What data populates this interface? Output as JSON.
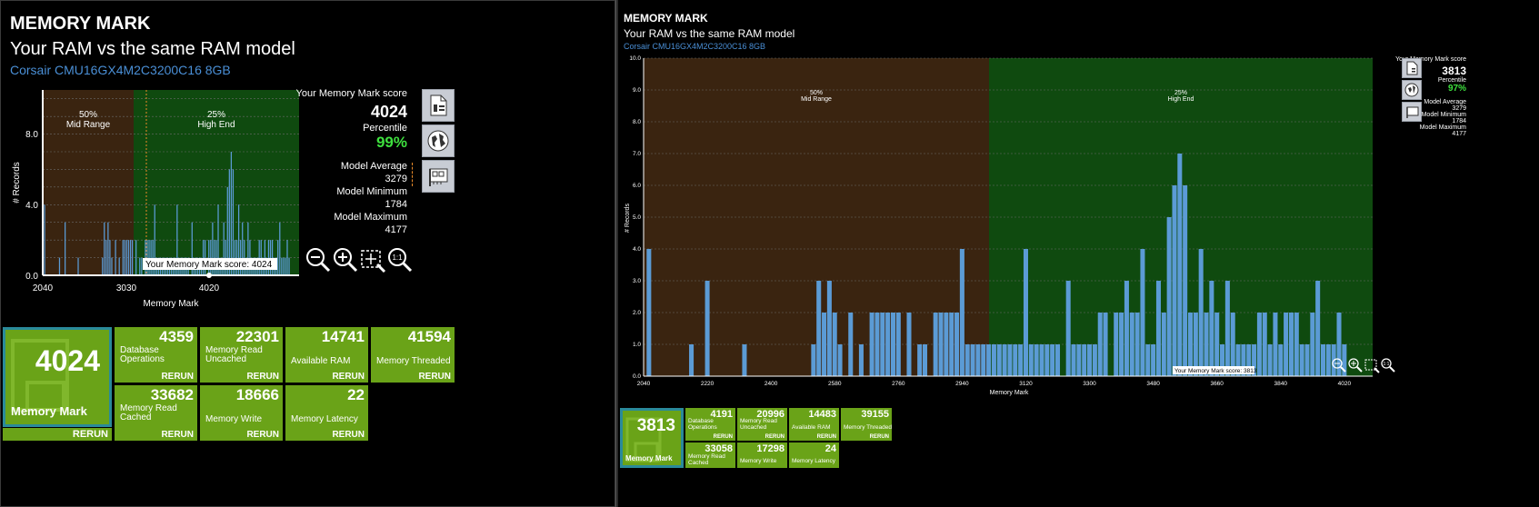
{
  "left": {
    "title": "MEMORY MARK",
    "subtitle": "Your RAM vs the same RAM model",
    "model": "Corsair CMU16GX4M2C3200C16 8GB",
    "chart": {
      "ylabel": "# Records",
      "xlabel": "Memory Mark",
      "yticks": [
        "0.0",
        "4.0",
        "8.0"
      ],
      "xticks": [
        "2040",
        "3030",
        "4020"
      ],
      "band1_pct": "50%",
      "band1_name": "Mid Range",
      "band2_pct": "25%",
      "band2_name": "High End",
      "marker": "Your Memory Mark score: 4024"
    },
    "score": {
      "label": "Your Memory Mark score",
      "value": "4024",
      "percentile_label": "Percentile",
      "percentile": "99%",
      "avg_label": "Model Average",
      "avg": "3279",
      "min_label": "Model Minimum",
      "min": "1784",
      "max_label": "Model Maximum",
      "max": "4177"
    },
    "tiles": {
      "main": {
        "value": "4024",
        "label": "Memory Mark",
        "rerun": "RERUN"
      },
      "db": {
        "value": "4359",
        "label1": "Database",
        "label2": "Operations",
        "rerun": "RERUN"
      },
      "readun": {
        "value": "22301",
        "label1": "Memory Read",
        "label2": "Uncached",
        "rerun": "RERUN"
      },
      "avail": {
        "value": "14741",
        "label1": "Available RAM",
        "rerun": "RERUN"
      },
      "thread": {
        "value": "41594",
        "label1": "Memory Threaded",
        "rerun": "RERUN"
      },
      "readc": {
        "value": "33682",
        "label1": "Memory Read",
        "label2": "Cached",
        "rerun": "RERUN"
      },
      "write": {
        "value": "18666",
        "label1": "Memory Write",
        "rerun": "RERUN"
      },
      "lat": {
        "value": "22",
        "label1": "Memory Latency",
        "rerun": "RERUN"
      }
    }
  },
  "right": {
    "title": "MEMORY MARK",
    "subtitle": "Your RAM vs the same RAM model",
    "model": "Corsair CMU16GX4M2C3200C16 8GB",
    "chart": {
      "ylabel": "# Records",
      "xlabel": "Memory Mark",
      "yticks": [
        "0.0",
        "1.0",
        "2.0",
        "3.0",
        "4.0",
        "5.0",
        "6.0",
        "7.0",
        "8.0",
        "9.0",
        "10.0"
      ],
      "xticks": [
        "2040",
        "2220",
        "2400",
        "2580",
        "2760",
        "2940",
        "3120",
        "3300",
        "3480",
        "3660",
        "3840",
        "4020"
      ],
      "band1_pct": "50%",
      "band1_name": "Mid Range",
      "band2_pct": "25%",
      "band2_name": "High End",
      "marker": "Your Memory Mark score: 3813"
    },
    "score": {
      "label": "Your Memory Mark score",
      "value": "3813",
      "percentile_label": "Percentile",
      "percentile": "97%",
      "avg_label": "Model Average",
      "avg": "3279",
      "min_label": "Model Minimum",
      "min": "1784",
      "max_label": "Model Maximum",
      "max": "4177"
    },
    "tiles": {
      "main": {
        "value": "3813",
        "label": "Memory Mark"
      },
      "db": {
        "value": "4191",
        "label1": "Database",
        "label2": "Operations",
        "rerun": "RERUN"
      },
      "readun": {
        "value": "20996",
        "label1": "Memory Read",
        "label2": "Uncached",
        "rerun": "RERUN"
      },
      "avail": {
        "value": "14483",
        "label1": "Available RAM",
        "rerun": "RERUN"
      },
      "thread": {
        "value": "39155",
        "label1": "Memory Threaded",
        "rerun": "RERUN"
      },
      "readc": {
        "value": "33058",
        "label1": "Memory Read",
        "label2": "Cached",
        "rerun": "RERUN"
      },
      "write": {
        "value": "17298",
        "label1": "Memory Write",
        "rerun": "RERUN"
      },
      "lat": {
        "value": "24",
        "label1": "Memory Latency",
        "rerun": "RERUN"
      }
    }
  },
  "chart_data": [
    {
      "type": "bar",
      "title": "Your RAM vs the same RAM model",
      "xlabel": "Memory Mark",
      "ylabel": "# Records",
      "xlim": [
        2040,
        4100
      ],
      "ylim": [
        0,
        10
      ],
      "bands": [
        {
          "label": "50% Mid Range",
          "from": 2040,
          "to": 3120
        },
        {
          "label": "25% High End",
          "from": 3120,
          "to": 4100
        }
      ],
      "marker": {
        "value": 3813,
        "label": "Your Memory Mark score: 3813"
      },
      "bin_width": 15,
      "x": [
        2055,
        2175,
        2220,
        2325,
        2520,
        2535,
        2550,
        2565,
        2580,
        2595,
        2625,
        2655,
        2685,
        2700,
        2715,
        2730,
        2745,
        2760,
        2790,
        2820,
        2835,
        2865,
        2880,
        2895,
        2910,
        2925,
        2940,
        2955,
        2970,
        2985,
        3000,
        3015,
        3030,
        3045,
        3060,
        3075,
        3090,
        3105,
        3120,
        3135,
        3150,
        3165,
        3180,
        3195,
        3210,
        3240,
        3255,
        3270,
        3285,
        3300,
        3315,
        3330,
        3345,
        3375,
        3390,
        3405,
        3420,
        3435,
        3450,
        3465,
        3480,
        3495,
        3510,
        3525,
        3540,
        3555,
        3570,
        3585,
        3600,
        3615,
        3630,
        3645,
        3660,
        3675,
        3690,
        3705,
        3720,
        3735,
        3750,
        3765,
        3780,
        3795,
        3810,
        3825,
        3840,
        3855,
        3870,
        3885,
        3900,
        3915,
        3930,
        3945,
        3960,
        3975,
        3990,
        4005,
        4020
      ],
      "values": [
        4,
        1,
        3,
        1,
        1,
        3,
        2,
        3,
        2,
        1,
        2,
        1,
        2,
        2,
        2,
        2,
        2,
        2,
        2,
        1,
        1,
        2,
        2,
        2,
        2,
        2,
        4,
        1,
        1,
        1,
        1,
        1,
        1,
        1,
        1,
        1,
        1,
        1,
        4,
        1,
        1,
        1,
        1,
        1,
        1,
        3,
        1,
        1,
        1,
        1,
        1,
        2,
        2,
        2,
        2,
        3,
        2,
        2,
        4,
        1,
        1,
        3,
        2,
        5,
        6,
        7,
        6,
        2,
        2,
        4,
        2,
        3,
        2,
        1,
        3,
        2,
        1,
        1,
        1,
        1,
        2,
        2,
        1,
        2,
        1,
        2,
        2,
        2,
        1,
        1,
        2,
        3,
        1,
        1,
        1,
        2,
        1
      ]
    }
  ]
}
